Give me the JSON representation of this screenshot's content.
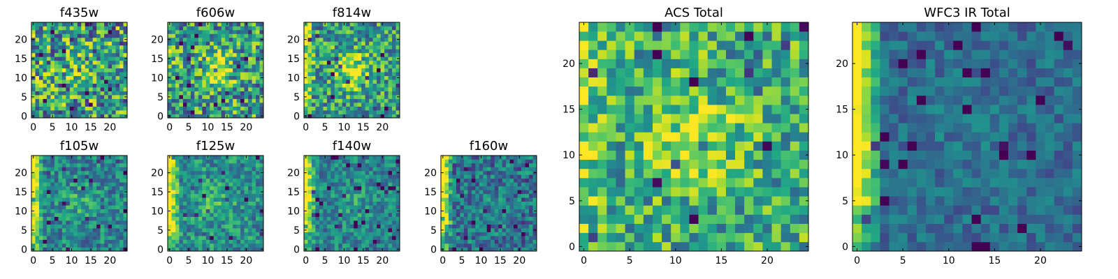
{
  "chart_data": {
    "type": "heatmap",
    "colormap": "viridis",
    "grid_size": 25,
    "panels": [
      {
        "id": "f435w",
        "title": "f435w",
        "x_ticks": [
          0,
          5,
          10,
          15,
          20
        ],
        "y_ticks": [
          0,
          5,
          10,
          15,
          20
        ],
        "xlim": [
          0,
          25
        ],
        "ylim": [
          0,
          25
        ],
        "pattern": "noise",
        "base": 0.55,
        "noise": 0.42,
        "blob": 0.12,
        "edge": 0.05,
        "seed": 11
      },
      {
        "id": "f606w",
        "title": "f606w",
        "x_ticks": [
          0,
          5,
          10,
          15,
          20
        ],
        "y_ticks": [
          0,
          5,
          10,
          15,
          20
        ],
        "xlim": [
          0,
          25
        ],
        "ylim": [
          0,
          25
        ],
        "pattern": "blob",
        "base": 0.55,
        "noise": 0.38,
        "blob": 0.35,
        "edge": 0.1,
        "seed": 23
      },
      {
        "id": "f814w",
        "title": "f814w",
        "x_ticks": [
          0,
          5,
          10,
          15,
          20
        ],
        "y_ticks": [
          0,
          5,
          10,
          15,
          20
        ],
        "xlim": [
          0,
          25
        ],
        "ylim": [
          0,
          25
        ],
        "pattern": "blob",
        "base": 0.55,
        "noise": 0.32,
        "blob": 0.4,
        "edge": 0.3,
        "seed": 37
      },
      {
        "id": "f105w",
        "title": "f105w",
        "x_ticks": [
          0,
          5,
          10,
          15,
          20
        ],
        "y_ticks": [
          0,
          5,
          10,
          15,
          20
        ],
        "xlim": [
          0,
          25
        ],
        "ylim": [
          0,
          25
        ],
        "pattern": "edge",
        "base": 0.45,
        "noise": 0.22,
        "blob": 0.15,
        "edge": 0.6,
        "seed": 41
      },
      {
        "id": "f125w",
        "title": "f125w",
        "x_ticks": [
          0,
          5,
          10,
          15,
          20
        ],
        "y_ticks": [
          0,
          5,
          10,
          15,
          20
        ],
        "xlim": [
          0,
          25
        ],
        "ylim": [
          0,
          25
        ],
        "pattern": "edge",
        "base": 0.5,
        "noise": 0.22,
        "blob": 0.15,
        "edge": 0.55,
        "seed": 53
      },
      {
        "id": "f140w",
        "title": "f140w",
        "x_ticks": [
          0,
          5,
          10,
          15,
          20
        ],
        "y_ticks": [
          0,
          5,
          10,
          15,
          20
        ],
        "xlim": [
          0,
          25
        ],
        "ylim": [
          0,
          25
        ],
        "pattern": "edge",
        "base": 0.45,
        "noise": 0.2,
        "blob": 0.12,
        "edge": 0.6,
        "seed": 67
      },
      {
        "id": "f160w",
        "title": "f160w",
        "x_ticks": [
          0,
          5,
          10,
          15,
          20
        ],
        "y_ticks": [
          0,
          5,
          10,
          15,
          20
        ],
        "xlim": [
          0,
          25
        ],
        "ylim": [
          0,
          25
        ],
        "pattern": "edge",
        "base": 0.38,
        "noise": 0.24,
        "blob": 0.08,
        "edge": 0.7,
        "seed": 79
      },
      {
        "id": "acs_total",
        "title": "ACS Total",
        "x_ticks": [
          0,
          5,
          10,
          15,
          20
        ],
        "y_ticks": [
          0,
          5,
          10,
          15,
          20
        ],
        "xlim": [
          0,
          25
        ],
        "ylim": [
          0,
          25
        ],
        "pattern": "blob",
        "base": 0.62,
        "noise": 0.3,
        "blob": 0.3,
        "edge": 0.25,
        "seed": 89
      },
      {
        "id": "wfc3_ir_total",
        "title": "WFC3 IR Total",
        "x_ticks": [
          0,
          5,
          10,
          15,
          20
        ],
        "y_ticks": [
          0,
          5,
          10,
          15,
          20
        ],
        "xlim": [
          0,
          25
        ],
        "ylim": [
          0,
          25
        ],
        "pattern": "edge",
        "base": 0.35,
        "noise": 0.14,
        "blob": 0.05,
        "edge": 0.75,
        "seed": 97
      }
    ]
  }
}
